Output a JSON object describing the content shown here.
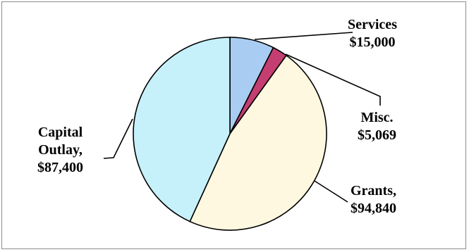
{
  "chart_data": {
    "type": "pie",
    "title": "",
    "slices": [
      {
        "name": "Services",
        "value": 15000,
        "label_name": "Services",
        "label_value": "$15,000",
        "color": "#a9cdf2"
      },
      {
        "name": "Misc.",
        "value": 5069,
        "label_name": "Misc.",
        "label_value": "$5,069",
        "color": "#c43e72"
      },
      {
        "name": "Grants",
        "value": 94840,
        "label_name": "Grants,",
        "label_value": "$94,840",
        "color": "#fdf8df"
      },
      {
        "name": "Capital Outlay",
        "value": 87400,
        "label_name_1": "Capital",
        "label_name_2": "Outlay,",
        "label_value": "$87,400",
        "color": "#c6f1fb"
      }
    ],
    "start_angle": "12 o'clock",
    "direction": "clockwise",
    "legend": "none"
  }
}
